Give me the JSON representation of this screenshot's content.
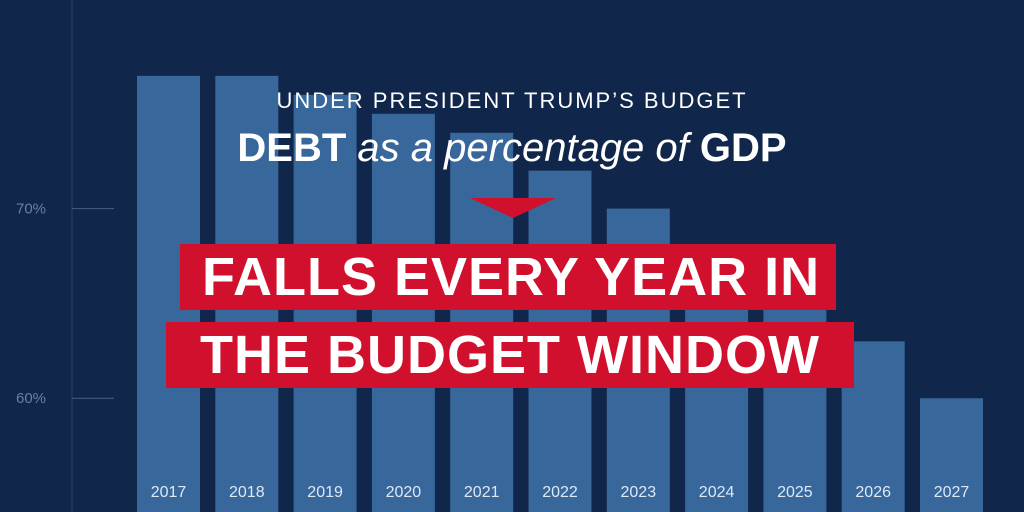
{
  "header": {
    "subtitle": "UNDER PRESIDENT TRUMP’S BUDGET",
    "title_part1": "DEBT",
    "title_part2": " as a percentage of ",
    "title_part3": "GDP"
  },
  "banner": {
    "line1": "FALLS EVERY YEAR IN",
    "line2": "THE BUDGET WINDOW"
  },
  "colors": {
    "background": "#10264a",
    "bar": "#37679b",
    "banner": "#d0102c",
    "text": "#ffffff"
  },
  "chart_data": {
    "type": "bar",
    "categories": [
      "2017",
      "2018",
      "2019",
      "2020",
      "2021",
      "2022",
      "2023",
      "2024",
      "2025",
      "2026",
      "2027"
    ],
    "values": [
      77,
      77,
      76,
      75,
      74,
      72,
      70,
      68,
      66,
      63,
      60
    ],
    "ylim": [
      54,
      81
    ],
    "yticks": [
      {
        "value": 70,
        "label": "70%"
      },
      {
        "value": 60,
        "label": "60%"
      }
    ],
    "grid": false
  }
}
